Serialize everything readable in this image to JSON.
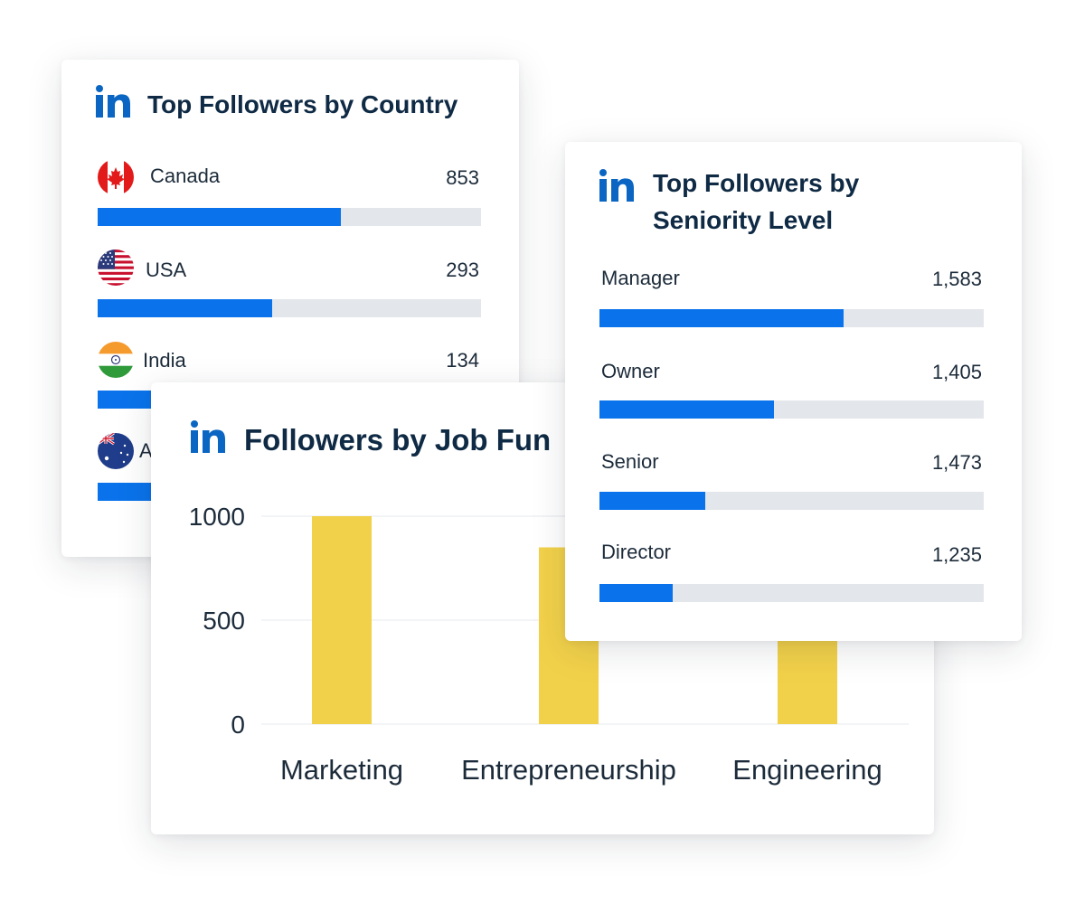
{
  "country_card": {
    "title": "Top Followers by Country",
    "logo_icon": "linkedin-icon",
    "accent": "#0a73eb",
    "rows": [
      {
        "label": "Canada",
        "value": "853",
        "fill": 0.635,
        "flag_icon": "canada-flag-icon"
      },
      {
        "label": "USA",
        "value": "293",
        "fill": 0.455,
        "flag_icon": "usa-flag-icon"
      },
      {
        "label": "India",
        "value": "134",
        "fill": 0.14,
        "flag_icon": "india-flag-icon"
      },
      {
        "label": "A",
        "value": "",
        "fill": 0.14,
        "flag_icon": "australia-flag-icon"
      }
    ]
  },
  "seniority_card": {
    "title_line1": "Top Followers by",
    "title_line2": "Seniority Level",
    "logo_icon": "linkedin-icon",
    "rows": [
      {
        "label": "Manager",
        "value": "1,583",
        "fill": 0.635
      },
      {
        "label": "Owner",
        "value": "1,405",
        "fill": 0.455
      },
      {
        "label": "Senior",
        "value": "1,473",
        "fill": 0.275
      },
      {
        "label": "Director",
        "value": "1,235",
        "fill": 0.19
      }
    ]
  },
  "job_card": {
    "title": "Followers by Job Fun",
    "logo_icon": "linkedin-icon"
  },
  "chart_data": {
    "type": "bar",
    "categories": [
      "Marketing",
      "Entrepreneurship",
      "Engineering"
    ],
    "values": [
      1000,
      850,
      null
    ],
    "yticks": [
      "1000",
      "500",
      "0"
    ],
    "ylim": [
      0,
      1000
    ],
    "grid": true,
    "bar_color": "#f2d14a"
  }
}
